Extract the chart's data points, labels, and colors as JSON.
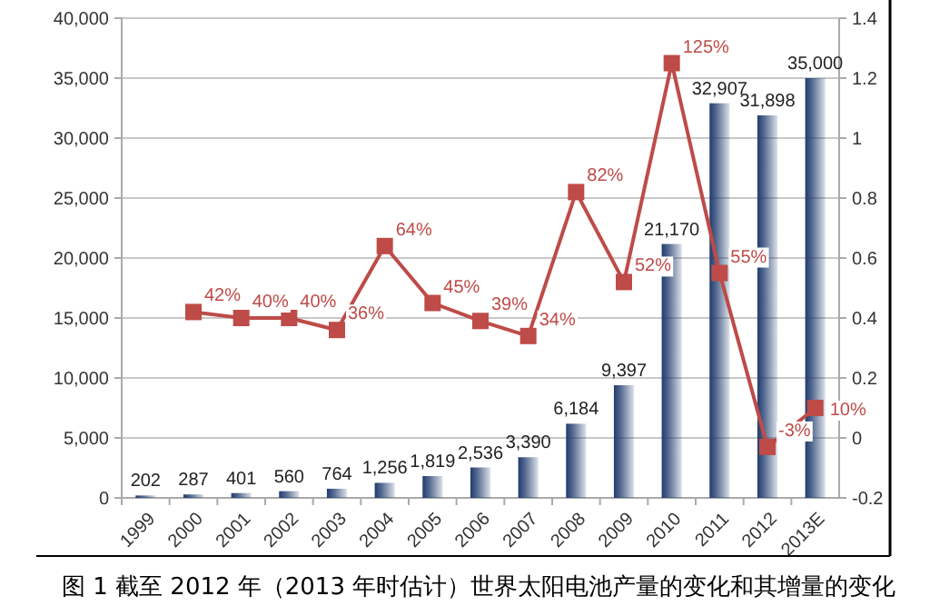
{
  "chart_data": {
    "type": "bar",
    "categories": [
      "1999",
      "2000",
      "2001",
      "2002",
      "2003",
      "2004",
      "2005",
      "2006",
      "2007",
      "2008",
      "2009",
      "2010",
      "2011",
      "2012",
      "2013E"
    ],
    "series": [
      {
        "color": "#1f3b6e",
        "values": [
          202,
          287,
          401,
          560,
          764,
          1256,
          1819,
          2536,
          3390,
          6184,
          9397,
          21170,
          32907,
          31898,
          35000
        ],
        "value_labels": [
          "202",
          "287",
          "401",
          "560",
          "764",
          "1,256",
          "1,819",
          "2,536",
          "3,390",
          "6,184",
          "9,397",
          "21,170",
          "32,907",
          "31,898",
          "35,000"
        ]
      },
      {
        "type": "line",
        "axis": "y2",
        "color": "#be4b48",
        "values": [
          null,
          0.42,
          0.4,
          0.4,
          0.36,
          0.64,
          0.45,
          0.39,
          0.34,
          0.82,
          0.52,
          1.25,
          0.55,
          -0.03,
          0.1
        ],
        "value_labels": [
          null,
          "42%",
          "40%",
          "40%",
          "36%",
          "64%",
          "45%",
          "39%",
          "34%",
          "82%",
          "52%",
          "125%",
          "55%",
          "-3%",
          "10%"
        ]
      }
    ],
    "ylim": [
      0,
      40000
    ],
    "yticks": [
      {
        "value": 0,
        "label": "0"
      },
      {
        "value": 5000,
        "label": "5,000"
      },
      {
        "value": 10000,
        "label": "10,000"
      },
      {
        "value": 15000,
        "label": "15,000"
      },
      {
        "value": 20000,
        "label": "20,000"
      },
      {
        "value": 25000,
        "label": "25,000"
      },
      {
        "value": 30000,
        "label": "30,000"
      },
      {
        "value": 35000,
        "label": "35,000"
      },
      {
        "value": 40000,
        "label": "40,000"
      }
    ],
    "y2lim": [
      -0.2,
      1.4
    ],
    "y2ticks": [
      -0.2,
      0,
      0.2,
      0.4,
      0.6,
      0.8,
      1,
      1.2,
      1.4
    ],
    "grid": "y",
    "marker": "square",
    "annotations": [
      "图 1 截至 2012 年（2013 年时估计）世界太阳电池产量的变化和其增量的变化"
    ]
  }
}
